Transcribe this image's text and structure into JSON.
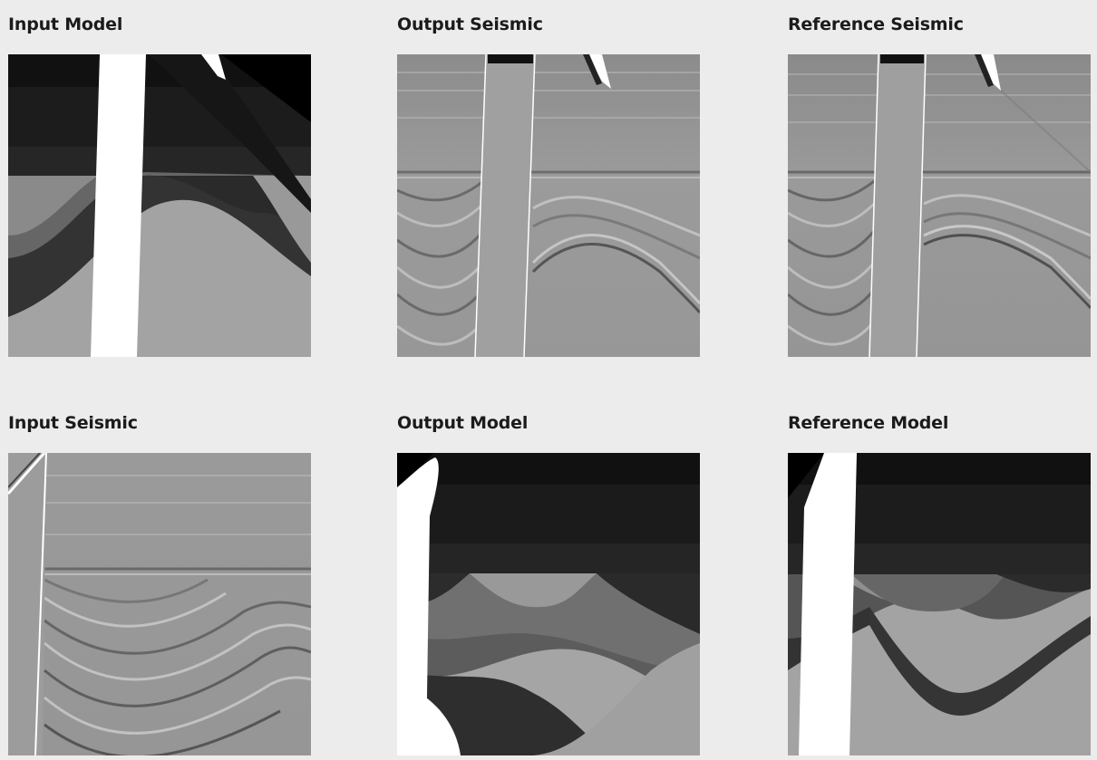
{
  "panels": {
    "input_model": {
      "title": "Input Model"
    },
    "output_seismic": {
      "title": "Output Seismic"
    },
    "reference_seismic": {
      "title": "Reference Seismic"
    },
    "input_seismic": {
      "title": "Input Seismic"
    },
    "output_model": {
      "title": "Output Model"
    },
    "reference_model": {
      "title": "Reference Model"
    }
  },
  "colors": {
    "background": "#ececec",
    "title_text": "#1b1b1b"
  }
}
